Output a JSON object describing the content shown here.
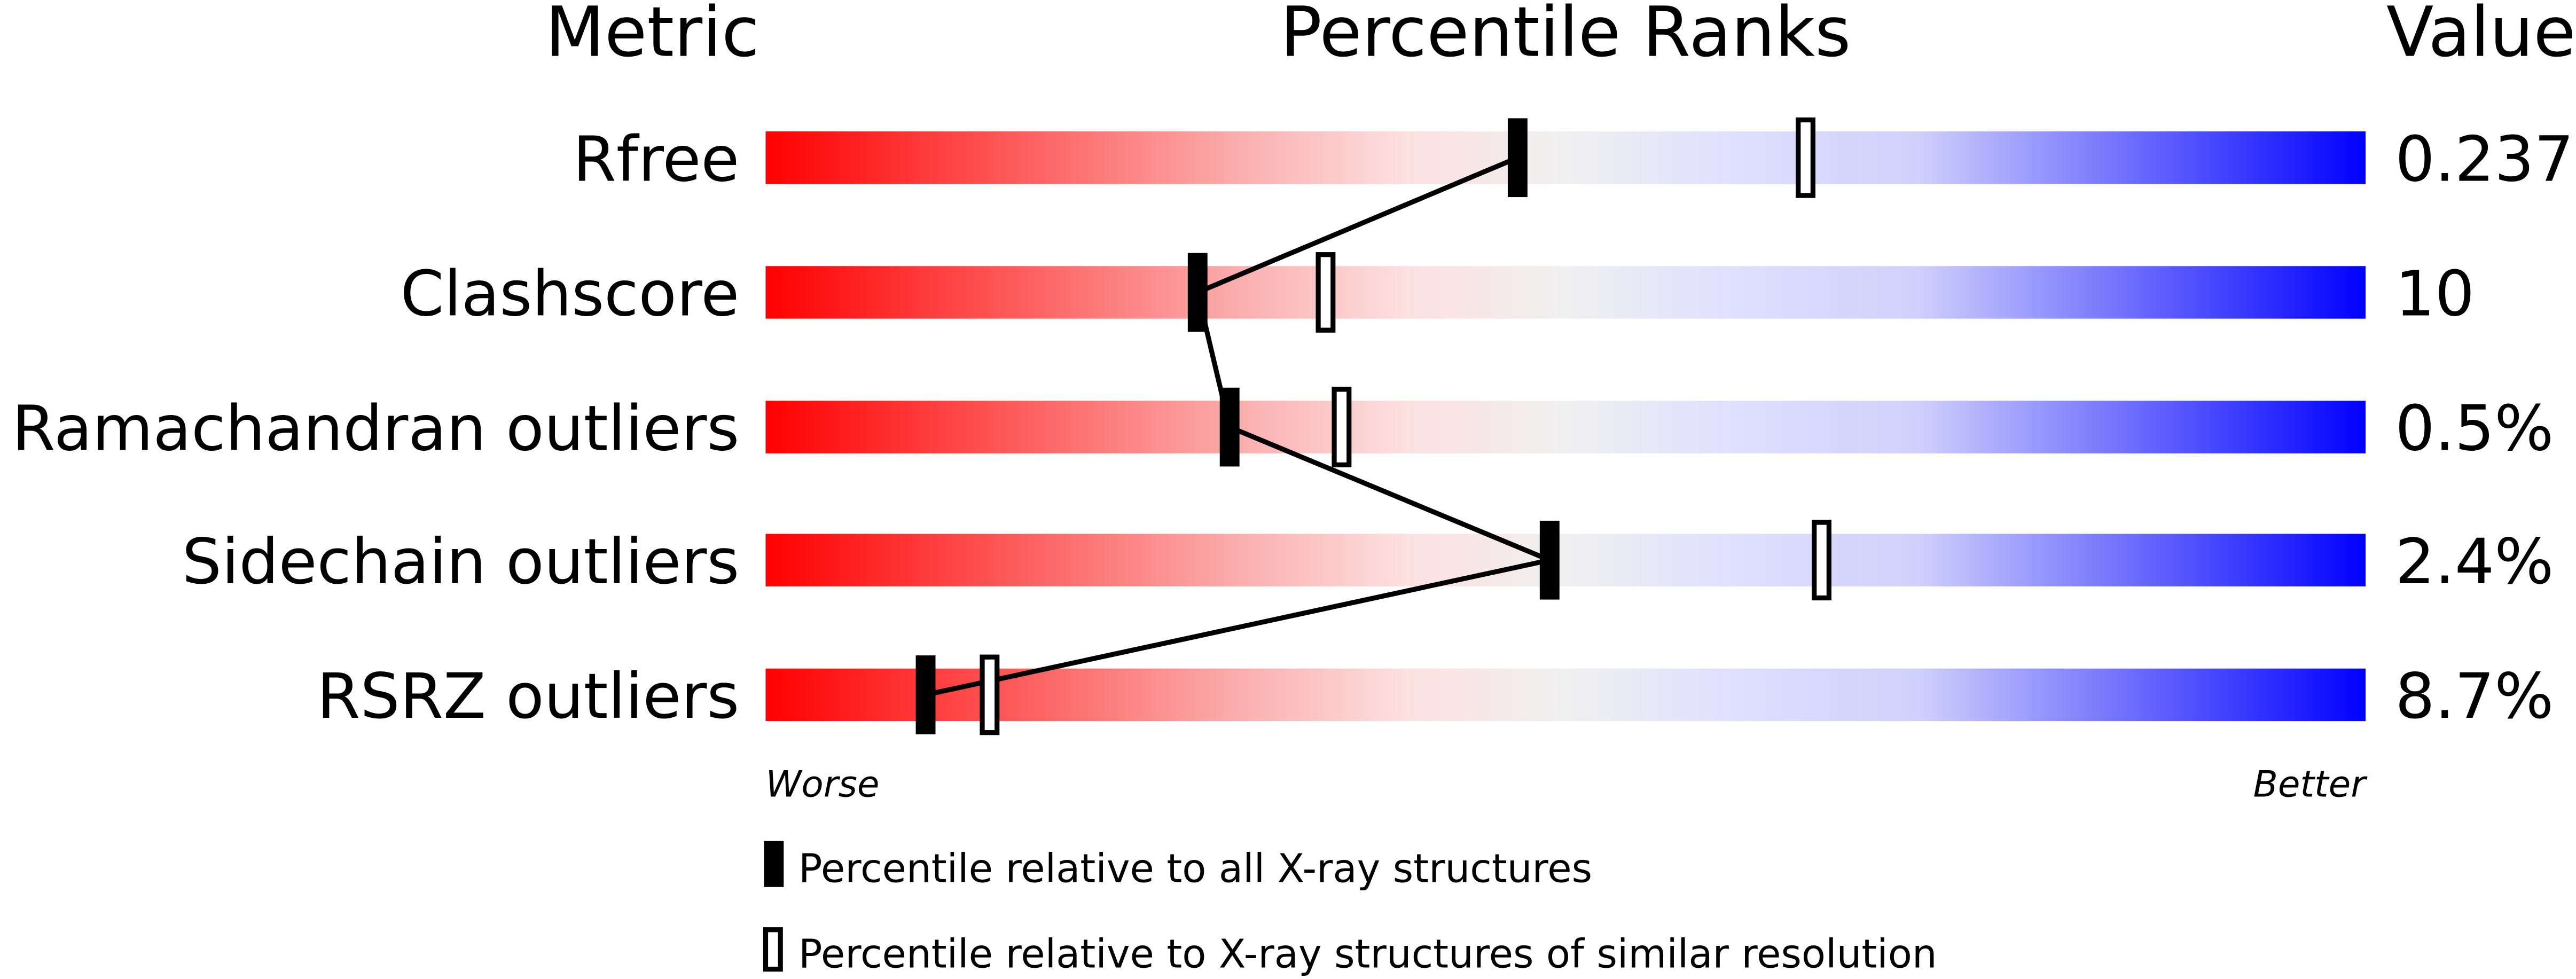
{
  "chart_data": {
    "type": "bar",
    "headers": {
      "metric": "Metric",
      "ranks": "Percentile Ranks",
      "value": "Value"
    },
    "xlim": [
      0,
      100
    ],
    "rows": [
      {
        "metric": "Rfree",
        "value": "0.237",
        "percentile_all": 47,
        "percentile_similar": 65
      },
      {
        "metric": "Clashscore",
        "value": "10",
        "percentile_all": 27,
        "percentile_similar": 35
      },
      {
        "metric": "Ramachandran outliers",
        "value": "0.5%",
        "percentile_all": 29,
        "percentile_similar": 36
      },
      {
        "metric": "Sidechain outliers",
        "value": "2.4%",
        "percentile_all": 49,
        "percentile_similar": 66
      },
      {
        "metric": "RSRZ outliers",
        "value": "8.7%",
        "percentile_all": 10,
        "percentile_similar": 14
      }
    ],
    "axis_labels": {
      "left": "Worse",
      "right": "Better"
    },
    "legend": [
      {
        "marker": "filled",
        "label": "Percentile relative to all X-ray structures"
      },
      {
        "marker": "hollow",
        "label": "Percentile relative to X-ray structures of similar resolution"
      }
    ],
    "gradient_colors": [
      "#ff0000",
      "#fde0e0",
      "#f0f0f0",
      "#e0e0ff",
      "#0000ff"
    ]
  }
}
